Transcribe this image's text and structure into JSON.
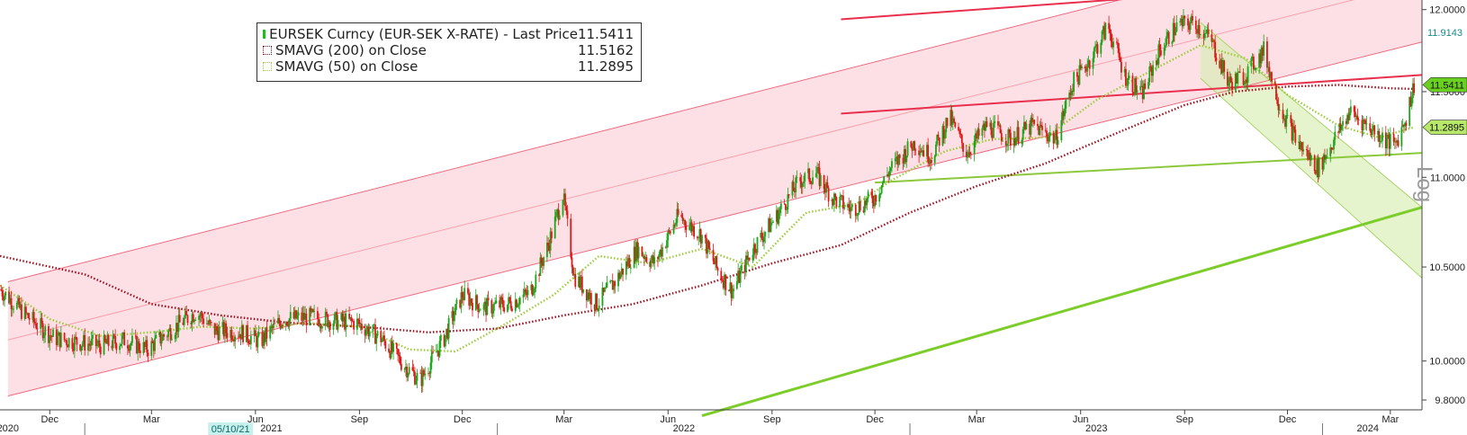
{
  "chart_data": {
    "type": "line",
    "title": "EURSEK Curncy (EUR-SEK X-RATE) - Last Price",
    "scale": "log",
    "ylim": [
      9.75,
      12.06
    ],
    "y_ticks": [
      9.8,
      10.0,
      10.5,
      11.0,
      11.5,
      12.0
    ],
    "y_tick_labels": [
      "9.8000",
      "10.0000",
      "10.5000",
      "11.0000",
      "11.5000",
      "12.0000"
    ],
    "x_range": [
      "2020-10-18",
      "2024-03-29"
    ],
    "x_month_ticks": [
      {
        "date": "2020-12-01",
        "label": "Dec"
      },
      {
        "date": "2021-03-01",
        "label": "Mar"
      },
      {
        "date": "2021-06-01",
        "label": "Jun"
      },
      {
        "date": "2021-09-01",
        "label": "Sep"
      },
      {
        "date": "2021-12-01",
        "label": "Dec"
      },
      {
        "date": "2022-03-01",
        "label": "Mar"
      },
      {
        "date": "2022-06-01",
        "label": "Jun"
      },
      {
        "date": "2022-09-01",
        "label": "Sep"
      },
      {
        "date": "2022-12-01",
        "label": "Dec"
      },
      {
        "date": "2023-03-01",
        "label": "Mar"
      },
      {
        "date": "2023-06-01",
        "label": "Jun"
      },
      {
        "date": "2023-09-01",
        "label": "Sep"
      },
      {
        "date": "2023-12-01",
        "label": "Dec"
      },
      {
        "date": "2024-03-01",
        "label": "Mar"
      }
    ],
    "x_year_labels": [
      {
        "date": "2020-10-25",
        "label": "2020"
      },
      {
        "date": "2021-06-15",
        "label": "2021"
      },
      {
        "date": "2022-06-15",
        "label": "2022"
      },
      {
        "date": "2023-06-15",
        "label": "2023"
      },
      {
        "date": "2024-02-10",
        "label": "2024"
      }
    ],
    "year_separators": [
      "2021-01-01",
      "2022-01-01",
      "2023-01-01",
      "2024-01-01"
    ],
    "date_marker": {
      "date": "2021-05-10",
      "label": "05/10/21"
    },
    "price_series": {
      "name": "EURSEK Curncy (EUR-SEK X-RATE) - Last Price",
      "last": "11.5411",
      "up_color": "#1aa51a",
      "down_color": "#e01818",
      "anchors": [
        [
          "2020-10-18",
          10.38
        ],
        [
          "2020-11-10",
          10.24
        ],
        [
          "2020-12-05",
          10.12
        ],
        [
          "2020-12-25",
          10.1
        ],
        [
          "2021-01-15",
          10.08
        ],
        [
          "2021-02-05",
          10.11
        ],
        [
          "2021-02-25",
          10.06
        ],
        [
          "2021-03-20",
          10.17
        ],
        [
          "2021-04-10",
          10.26
        ],
        [
          "2021-04-25",
          10.16
        ],
        [
          "2021-05-20",
          10.15
        ],
        [
          "2021-06-05",
          10.1
        ],
        [
          "2021-06-25",
          10.22
        ],
        [
          "2021-07-20",
          10.23
        ],
        [
          "2021-08-10",
          10.21
        ],
        [
          "2021-08-30",
          10.2
        ],
        [
          "2021-09-20",
          10.12
        ],
        [
          "2021-10-10",
          9.98
        ],
        [
          "2021-10-25",
          9.9
        ],
        [
          "2021-11-15",
          10.12
        ],
        [
          "2021-12-01",
          10.35
        ],
        [
          "2021-12-20",
          10.28
        ],
        [
          "2022-01-10",
          10.3
        ],
        [
          "2022-01-30",
          10.36
        ],
        [
          "2022-02-15",
          10.62
        ],
        [
          "2022-02-28",
          10.9
        ],
        [
          "2022-03-10",
          10.45
        ],
        [
          "2022-03-30",
          10.3
        ],
        [
          "2022-04-15",
          10.42
        ],
        [
          "2022-05-05",
          10.6
        ],
        [
          "2022-05-20",
          10.52
        ],
        [
          "2022-06-10",
          10.78
        ],
        [
          "2022-06-30",
          10.68
        ],
        [
          "2022-07-15",
          10.48
        ],
        [
          "2022-07-28",
          10.37
        ],
        [
          "2022-08-15",
          10.6
        ],
        [
          "2022-09-05",
          10.78
        ],
        [
          "2022-09-25",
          10.98
        ],
        [
          "2022-10-10",
          11.02
        ],
        [
          "2022-10-25",
          10.88
        ],
        [
          "2022-11-10",
          10.82
        ],
        [
          "2022-11-30",
          10.88
        ],
        [
          "2022-12-15",
          11.05
        ],
        [
          "2023-01-05",
          11.2
        ],
        [
          "2023-01-20",
          11.12
        ],
        [
          "2023-02-05",
          11.35
        ],
        [
          "2023-02-20",
          11.14
        ],
        [
          "2023-03-10",
          11.3
        ],
        [
          "2023-03-31",
          11.22
        ],
        [
          "2023-04-20",
          11.3
        ],
        [
          "2023-05-10",
          11.22
        ],
        [
          "2023-05-25",
          11.55
        ],
        [
          "2023-06-10",
          11.7
        ],
        [
          "2023-06-25",
          11.9
        ],
        [
          "2023-07-10",
          11.6
        ],
        [
          "2023-07-25",
          11.48
        ],
        [
          "2023-08-10",
          11.75
        ],
        [
          "2023-08-25",
          11.9
        ],
        [
          "2023-09-10",
          11.92
        ],
        [
          "2023-09-25",
          11.8
        ],
        [
          "2023-10-10",
          11.55
        ],
        [
          "2023-10-25",
          11.6
        ],
        [
          "2023-11-10",
          11.75
        ],
        [
          "2023-11-25",
          11.4
        ],
        [
          "2023-12-10",
          11.2
        ],
        [
          "2023-12-28",
          11.05
        ],
        [
          "2024-01-10",
          11.2
        ],
        [
          "2024-01-25",
          11.38
        ],
        [
          "2024-02-10",
          11.3
        ],
        [
          "2024-02-25",
          11.22
        ],
        [
          "2024-03-05",
          11.18
        ],
        [
          "2024-03-15",
          11.35
        ],
        [
          "2024-03-22",
          11.54
        ]
      ]
    },
    "series": [
      {
        "name": "SMAVG (200)  on Close",
        "last": "11.5162",
        "color": "#a01020",
        "values": [
          [
            "2020-10-18",
            10.56
          ],
          [
            "2021-01-01",
            10.46
          ],
          [
            "2021-03-01",
            10.3
          ],
          [
            "2021-05-01",
            10.24
          ],
          [
            "2021-07-01",
            10.2
          ],
          [
            "2021-09-01",
            10.18
          ],
          [
            "2021-11-01",
            10.15
          ],
          [
            "2022-01-01",
            10.17
          ],
          [
            "2022-03-01",
            10.24
          ],
          [
            "2022-05-01",
            10.3
          ],
          [
            "2022-07-01",
            10.4
          ],
          [
            "2022-09-01",
            10.52
          ],
          [
            "2022-11-01",
            10.62
          ],
          [
            "2023-01-01",
            10.8
          ],
          [
            "2023-03-01",
            10.95
          ],
          [
            "2023-05-01",
            11.08
          ],
          [
            "2023-07-01",
            11.25
          ],
          [
            "2023-09-01",
            11.42
          ],
          [
            "2023-10-15",
            11.5
          ],
          [
            "2023-12-01",
            11.53
          ],
          [
            "2024-01-15",
            11.54
          ],
          [
            "2024-03-01",
            11.52
          ],
          [
            "2024-03-22",
            11.5162
          ]
        ]
      },
      {
        "name": "SMAVG (50)  on Close",
        "last": "11.2895",
        "color": "#9ccc3c",
        "values": [
          [
            "2020-10-18",
            10.4
          ],
          [
            "2020-12-01",
            10.22
          ],
          [
            "2021-01-15",
            10.13
          ],
          [
            "2021-03-01",
            10.15
          ],
          [
            "2021-04-15",
            10.18
          ],
          [
            "2021-06-01",
            10.17
          ],
          [
            "2021-07-15",
            10.2
          ],
          [
            "2021-09-01",
            10.18
          ],
          [
            "2021-10-15",
            10.06
          ],
          [
            "2021-11-25",
            10.05
          ],
          [
            "2022-01-10",
            10.2
          ],
          [
            "2022-02-20",
            10.35
          ],
          [
            "2022-04-01",
            10.56
          ],
          [
            "2022-05-15",
            10.52
          ],
          [
            "2022-07-01",
            10.6
          ],
          [
            "2022-08-15",
            10.5
          ],
          [
            "2022-10-01",
            10.8
          ],
          [
            "2022-11-15",
            10.85
          ],
          [
            "2022-12-15",
            10.98
          ],
          [
            "2023-02-01",
            11.15
          ],
          [
            "2023-03-15",
            11.22
          ],
          [
            "2023-05-01",
            11.23
          ],
          [
            "2023-06-15",
            11.45
          ],
          [
            "2023-08-01",
            11.62
          ],
          [
            "2023-09-15",
            11.78
          ],
          [
            "2023-10-25",
            11.7
          ],
          [
            "2023-12-01",
            11.48
          ],
          [
            "2024-01-15",
            11.3
          ],
          [
            "2024-02-20",
            11.23
          ],
          [
            "2024-03-22",
            11.2895
          ]
        ]
      }
    ],
    "annotations": {
      "red_channel_upper": [
        [
          "2020-10-25",
          10.42
        ],
        [
          "2024-03-29",
          12.55
        ]
      ],
      "red_channel_lower": [
        [
          "2020-10-25",
          9.82
        ],
        [
          "2024-03-29",
          11.8
        ]
      ],
      "red_channel_mid": [
        [
          "2020-10-25",
          10.11
        ],
        [
          "2024-03-29",
          12.17
        ]
      ],
      "red_resistance_top": [
        [
          "2022-11-01",
          11.94
        ],
        [
          "2024-03-29",
          12.2
        ]
      ],
      "red_resistance_mid": [
        [
          "2022-11-01",
          11.37
        ],
        [
          "2024-03-29",
          11.6
        ]
      ],
      "green_channel_upper": [
        [
          "2023-09-15",
          11.92
        ],
        [
          "2024-03-29",
          10.83
        ]
      ],
      "green_channel_lower": [
        [
          "2023-09-15",
          11.58
        ],
        [
          "2024-03-29",
          10.44
        ]
      ],
      "green_support": [
        [
          "2022-12-01",
          10.97
        ],
        [
          "2024-03-29",
          11.14
        ]
      ],
      "green_trend_long": [
        [
          "2022-07-01",
          9.72
        ],
        [
          "2024-03-29",
          10.83
        ]
      ]
    },
    "badges": [
      {
        "label": "11.9143",
        "value": 11.9143,
        "color": "#1a8a8a",
        "style": "text"
      },
      {
        "label": "11.5411",
        "value": 11.5411,
        "color": "#6ad020",
        "style": "arrow"
      },
      {
        "label": "11.2895",
        "value": 11.2895,
        "color": "#b8e86a",
        "style": "arrow"
      }
    ],
    "axis_scale_label": "Log"
  }
}
